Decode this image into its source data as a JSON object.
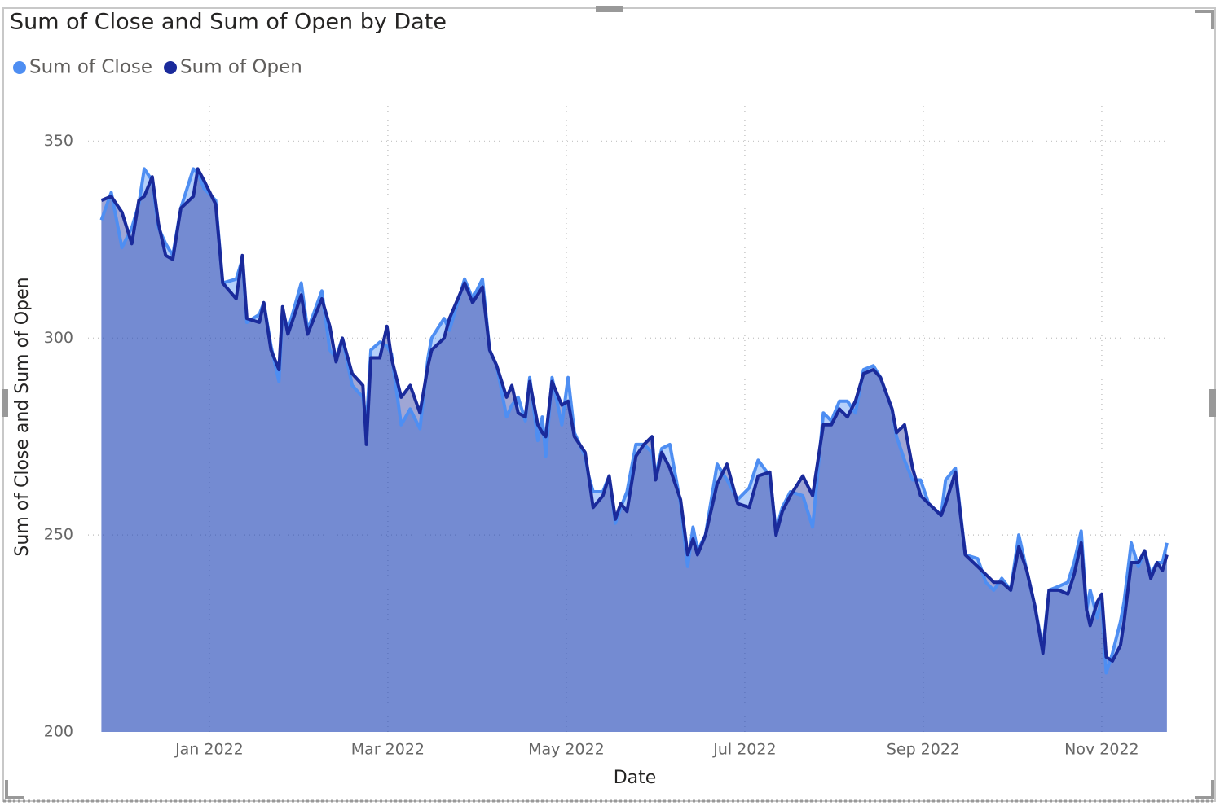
{
  "chart_data": {
    "type": "area",
    "title": "Sum of Close and Sum of Open by Date",
    "x_label": "Date",
    "y_label": "Sum of Close and Sum of Open",
    "x": [
      -0.21,
      -0.1,
      0.02,
      0.13,
      0.21,
      0.27,
      0.36,
      0.43,
      0.51,
      0.59,
      0.68,
      0.82,
      0.87,
      0.94,
      1.07,
      1.15,
      1.3,
      1.37,
      1.42,
      1.56,
      1.61,
      1.69,
      1.78,
      1.82,
      1.88,
      2.03,
      2.1,
      2.26,
      2.35,
      2.42,
      2.49,
      2.6,
      2.72,
      2.76,
      2.81,
      2.91,
      2.99,
      3.04,
      3.15,
      3.25,
      3.36,
      3.45,
      3.49,
      3.63,
      3.69,
      3.86,
      3.95,
      4.06,
      4.14,
      4.22,
      4.33,
      4.39,
      4.46,
      4.54,
      4.59,
      4.68,
      4.73,
      4.77,
      4.84,
      4.95,
      5.02,
      5.09,
      5.21,
      5.25,
      5.3,
      5.41,
      5.48,
      5.55,
      5.61,
      5.68,
      5.78,
      5.87,
      5.96,
      6.0,
      6.07,
      6.16,
      6.28,
      6.36,
      6.42,
      6.47,
      6.56,
      6.69,
      6.8,
      6.92,
      7.05,
      7.15,
      7.28,
      7.35,
      7.42,
      7.51,
      7.65,
      7.76,
      7.88,
      7.97,
      8.06,
      8.15,
      8.24,
      8.33,
      8.44,
      8.52,
      8.65,
      8.7,
      8.79,
      8.88,
      8.97,
      9.06,
      9.2,
      9.25,
      9.36,
      9.47,
      9.61,
      9.7,
      9.79,
      9.88,
      9.98,
      10.07,
      10.16,
      10.25,
      10.34,
      10.41,
      10.52,
      10.62,
      10.69,
      10.77,
      10.83,
      10.87,
      10.95,
      11.0,
      11.05,
      11.12,
      11.21,
      11.25,
      11.33,
      11.41,
      11.48,
      11.55,
      11.62,
      11.68,
      11.73
    ],
    "series": [
      {
        "name": "Sum of Close",
        "color": "#4e8ef2",
        "values": [
          330,
          337,
          323,
          328,
          334,
          343,
          340,
          328,
          324,
          321,
          333,
          343,
          342,
          338,
          335,
          314,
          315,
          320,
          304,
          306,
          309,
          298,
          289,
          307,
          302,
          314,
          302,
          312,
          297,
          295,
          300,
          288,
          285,
          278,
          297,
          299,
          298,
          296,
          278,
          282,
          277,
          295,
          300,
          305,
          302,
          315,
          310,
          315,
          297,
          293,
          280,
          283,
          285,
          279,
          290,
          274,
          280,
          270,
          290,
          278,
          290,
          276,
          270,
          265,
          261,
          261,
          265,
          253,
          257,
          261,
          273,
          273,
          271,
          265,
          272,
          273,
          258,
          242,
          252,
          246,
          250,
          268,
          264,
          259,
          262,
          269,
          265,
          251,
          257,
          261,
          260,
          252,
          281,
          279,
          284,
          284,
          281,
          292,
          293,
          290,
          282,
          275,
          269,
          264,
          264,
          258,
          255,
          264,
          267,
          245,
          244,
          238,
          236,
          239,
          236,
          250,
          241,
          232,
          221,
          236,
          237,
          238,
          243,
          251,
          231,
          236,
          229,
          234,
          215,
          220,
          228,
          233,
          248,
          242,
          246,
          240,
          243,
          243,
          248
        ]
      },
      {
        "name": "Sum of Open",
        "color": "#1a2a9b",
        "values": [
          335,
          336,
          332,
          324,
          335,
          336,
          341,
          329,
          321,
          320,
          333,
          336,
          343,
          340,
          334,
          314,
          310,
          321,
          305,
          304,
          309,
          297,
          292,
          308,
          301,
          311,
          301,
          310,
          303,
          294,
          300,
          291,
          288,
          273,
          295,
          295,
          303,
          295,
          285,
          288,
          281,
          293,
          297,
          300,
          305,
          314,
          309,
          313,
          297,
          293,
          285,
          288,
          281,
          280,
          289,
          278,
          276,
          275,
          289,
          283,
          284,
          275,
          271,
          265,
          257,
          260,
          265,
          254,
          258,
          256,
          270,
          273,
          275,
          264,
          271,
          267,
          259,
          245,
          249,
          245,
          250,
          263,
          268,
          258,
          257,
          265,
          266,
          250,
          256,
          260,
          265,
          260,
          278,
          278,
          282,
          280,
          284,
          291,
          292,
          290,
          282,
          276,
          278,
          267,
          260,
          258,
          255,
          258,
          266,
          245,
          242,
          240,
          238,
          238,
          236,
          247,
          241,
          232,
          220,
          236,
          236,
          235,
          240,
          248,
          231,
          227,
          233,
          235,
          219,
          218,
          222,
          228,
          243,
          243,
          246,
          239,
          243,
          241,
          245
        ]
      }
    ],
    "xlim": [
      -0.36,
      11.85
    ],
    "ylim": [
      200,
      359
    ],
    "xticks": [
      {
        "value": 1,
        "label": "Jan 2022"
      },
      {
        "value": 3,
        "label": "Mar 2022"
      },
      {
        "value": 5,
        "label": "May 2022"
      },
      {
        "value": 7,
        "label": "Jul 2022"
      },
      {
        "value": 9,
        "label": "Sep 2022"
      },
      {
        "value": 11,
        "label": "Nov 2022"
      }
    ],
    "yticks": [
      200,
      250,
      300,
      350
    ],
    "grid": true,
    "legend": "top-left"
  }
}
